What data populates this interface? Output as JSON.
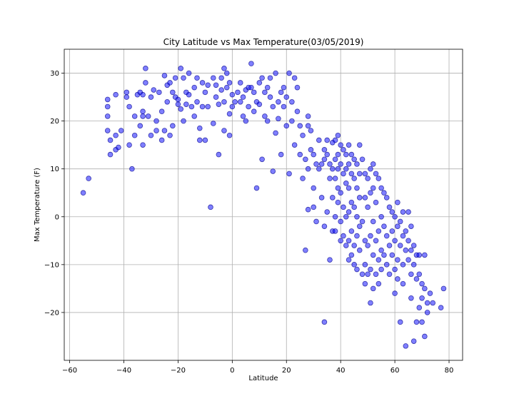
{
  "chart_data": {
    "type": "scatter",
    "title": "City Latitude vs Max Temperature(03/05/2019)",
    "xlabel": "Latitude",
    "ylabel": "Max Temperature (F)",
    "xlim": [
      -62,
      85
    ],
    "ylim": [
      -30,
      35
    ],
    "xticks": [
      -60,
      -40,
      -20,
      0,
      20,
      40,
      60,
      80
    ],
    "yticks": [
      -20,
      -10,
      0,
      10,
      20,
      30
    ],
    "grid": true,
    "marker_color": "#0000ff",
    "marker_edge": "#00008b",
    "marker_alpha": 0.5,
    "points": [
      [
        -55,
        5
      ],
      [
        -53,
        8
      ],
      [
        -46,
        18
      ],
      [
        -46,
        24.5
      ],
      [
        -46,
        23
      ],
      [
        -46,
        21
      ],
      [
        -45,
        16
      ],
      [
        -45,
        13
      ],
      [
        -43,
        25.5
      ],
      [
        -43,
        17
      ],
      [
        -43,
        14
      ],
      [
        -42,
        14.5
      ],
      [
        -41,
        18
      ],
      [
        -39,
        26
      ],
      [
        -39,
        25
      ],
      [
        -38,
        23
      ],
      [
        -38,
        15
      ],
      [
        -37,
        10
      ],
      [
        -36,
        21
      ],
      [
        -36,
        17
      ],
      [
        -35,
        25.5
      ],
      [
        -34,
        26
      ],
      [
        -34,
        19
      ],
      [
        -33,
        25.5
      ],
      [
        -33,
        22
      ],
      [
        -33,
        21
      ],
      [
        -33,
        15
      ],
      [
        -32,
        28
      ],
      [
        -32,
        31
      ],
      [
        -31,
        21
      ],
      [
        -30,
        25
      ],
      [
        -30,
        17
      ],
      [
        -29,
        26.5
      ],
      [
        -28,
        20
      ],
      [
        -28,
        18
      ],
      [
        -27,
        26
      ],
      [
        -26,
        22
      ],
      [
        -26,
        16
      ],
      [
        -25,
        29.5
      ],
      [
        -25,
        18
      ],
      [
        -24,
        27.5
      ],
      [
        -24,
        24
      ],
      [
        -23,
        28
      ],
      [
        -23,
        17
      ],
      [
        -22,
        19
      ],
      [
        -22,
        26
      ],
      [
        -21,
        29
      ],
      [
        -21,
        25
      ],
      [
        -20,
        23.5
      ],
      [
        -20,
        24.5
      ],
      [
        -19,
        31
      ],
      [
        -19,
        22.5
      ],
      [
        -18,
        29
      ],
      [
        -18,
        20
      ],
      [
        -17,
        26
      ],
      [
        -17,
        23.5
      ],
      [
        -16,
        30
      ],
      [
        -16,
        25.5
      ],
      [
        -15,
        23
      ],
      [
        -14,
        27
      ],
      [
        -14,
        21
      ],
      [
        -13,
        29
      ],
      [
        -13,
        24
      ],
      [
        -12,
        16
      ],
      [
        -12,
        18.5
      ],
      [
        -11,
        28
      ],
      [
        -11,
        23
      ],
      [
        -10,
        26
      ],
      [
        -10,
        16
      ],
      [
        -9,
        27.5
      ],
      [
        -9,
        23
      ],
      [
        -8,
        2
      ],
      [
        -7,
        29
      ],
      [
        -7,
        19.5
      ],
      [
        -6,
        25
      ],
      [
        -6,
        27.5
      ],
      [
        -5,
        13
      ],
      [
        -5,
        23.5
      ],
      [
        -4,
        29
      ],
      [
        -4,
        26.5
      ],
      [
        -3,
        31
      ],
      [
        -3,
        24
      ],
      [
        -3,
        18
      ],
      [
        -2,
        27
      ],
      [
        -2,
        30
      ],
      [
        -1,
        28
      ],
      [
        -1,
        21.5
      ],
      [
        -1,
        17
      ],
      [
        0,
        25.5
      ],
      [
        0,
        23
      ],
      [
        1,
        24
      ],
      [
        2,
        26
      ],
      [
        3,
        24
      ],
      [
        3,
        28
      ],
      [
        4,
        25
      ],
      [
        4,
        21
      ],
      [
        5,
        26.5
      ],
      [
        5,
        20
      ],
      [
        6,
        27
      ],
      [
        6,
        23
      ],
      [
        7,
        32
      ],
      [
        7,
        27
      ],
      [
        8,
        26
      ],
      [
        8,
        22
      ],
      [
        9,
        6
      ],
      [
        9,
        24
      ],
      [
        10,
        23.5
      ],
      [
        10,
        28
      ],
      [
        11,
        29
      ],
      [
        11,
        12
      ],
      [
        12,
        26
      ],
      [
        12,
        21
      ],
      [
        13,
        27
      ],
      [
        13,
        20
      ],
      [
        14,
        29
      ],
      [
        14,
        25
      ],
      [
        15,
        23
      ],
      [
        15,
        9.5
      ],
      [
        16,
        30
      ],
      [
        16,
        17.5
      ],
      [
        17,
        24
      ],
      [
        17,
        20.5
      ],
      [
        18,
        26
      ],
      [
        18,
        13
      ],
      [
        19,
        23
      ],
      [
        19,
        27
      ],
      [
        20,
        19
      ],
      [
        20,
        25
      ],
      [
        21,
        30
      ],
      [
        21,
        9
      ],
      [
        22,
        24
      ],
      [
        22,
        20
      ],
      [
        23,
        29
      ],
      [
        23,
        15
      ],
      [
        24,
        27
      ],
      [
        24,
        22
      ],
      [
        25,
        19
      ],
      [
        25,
        13
      ],
      [
        26,
        17
      ],
      [
        26,
        8
      ],
      [
        27,
        12
      ],
      [
        27,
        -7
      ],
      [
        28,
        19
      ],
      [
        28,
        21
      ],
      [
        28,
        10
      ],
      [
        28,
        1.5
      ],
      [
        29,
        18
      ],
      [
        29,
        14
      ],
      [
        30,
        13
      ],
      [
        30,
        6
      ],
      [
        30,
        2
      ],
      [
        31,
        11
      ],
      [
        31,
        -1
      ],
      [
        32,
        16
      ],
      [
        32,
        10
      ],
      [
        33,
        11
      ],
      [
        33,
        4
      ],
      [
        34,
        14
      ],
      [
        34,
        12
      ],
      [
        34,
        -2
      ],
      [
        34,
        -22
      ],
      [
        35,
        16
      ],
      [
        35,
        13
      ],
      [
        35,
        1
      ],
      [
        36,
        11
      ],
      [
        36,
        8
      ],
      [
        36,
        -9
      ],
      [
        37,
        15.5
      ],
      [
        37,
        10
      ],
      [
        37,
        4
      ],
      [
        37,
        -3
      ],
      [
        38,
        16
      ],
      [
        38,
        12
      ],
      [
        38,
        8
      ],
      [
        38,
        0
      ],
      [
        38,
        -3
      ],
      [
        39,
        17
      ],
      [
        39,
        13
      ],
      [
        39,
        10
      ],
      [
        39,
        6
      ],
      [
        39,
        3
      ],
      [
        40,
        15
      ],
      [
        40,
        11
      ],
      [
        40,
        5
      ],
      [
        40,
        -1
      ],
      [
        40,
        -5
      ],
      [
        41,
        14
      ],
      [
        41,
        9
      ],
      [
        41,
        2
      ],
      [
        41,
        -4
      ],
      [
        42,
        13
      ],
      [
        42,
        10
      ],
      [
        42,
        7
      ],
      [
        42,
        0
      ],
      [
        42,
        -6
      ],
      [
        43,
        15
      ],
      [
        43,
        11
      ],
      [
        43,
        6
      ],
      [
        43,
        1
      ],
      [
        43,
        -5
      ],
      [
        43,
        -9
      ],
      [
        44,
        13
      ],
      [
        44,
        9
      ],
      [
        44,
        3
      ],
      [
        44,
        -3
      ],
      [
        44,
        -8
      ],
      [
        45,
        12
      ],
      [
        45,
        8
      ],
      [
        45,
        2
      ],
      [
        45,
        -6
      ],
      [
        45,
        -10
      ],
      [
        46,
        11
      ],
      [
        46,
        6
      ],
      [
        46,
        0
      ],
      [
        46,
        -4
      ],
      [
        46,
        -11
      ],
      [
        47,
        15
      ],
      [
        47,
        9
      ],
      [
        47,
        4
      ],
      [
        47,
        -2
      ],
      [
        47,
        -7
      ],
      [
        48,
        12
      ],
      [
        48,
        -1
      ],
      [
        48,
        -12
      ],
      [
        49,
        9
      ],
      [
        49,
        4
      ],
      [
        49,
        -5
      ],
      [
        49,
        -10
      ],
      [
        49,
        -14
      ],
      [
        50,
        8
      ],
      [
        50,
        2
      ],
      [
        50,
        -6
      ],
      [
        50,
        -12
      ],
      [
        51,
        10
      ],
      [
        51,
        5
      ],
      [
        51,
        -4
      ],
      [
        51,
        -11
      ],
      [
        51,
        -18
      ],
      [
        52,
        11
      ],
      [
        52,
        6
      ],
      [
        52,
        -1
      ],
      [
        52,
        -8
      ],
      [
        52,
        -15
      ],
      [
        53,
        9
      ],
      [
        53,
        3
      ],
      [
        53,
        -5
      ],
      [
        53,
        -12
      ],
      [
        54,
        8
      ],
      [
        54,
        -3
      ],
      [
        54,
        -9
      ],
      [
        54,
        -14
      ],
      [
        55,
        6
      ],
      [
        55,
        0
      ],
      [
        55,
        -7
      ],
      [
        55,
        -11
      ],
      [
        56,
        5
      ],
      [
        56,
        -2
      ],
      [
        56,
        -8
      ],
      [
        57,
        4
      ],
      [
        57,
        -4
      ],
      [
        57,
        -10
      ],
      [
        58,
        2
      ],
      [
        58,
        -6
      ],
      [
        58,
        -12
      ],
      [
        59,
        1
      ],
      [
        59,
        -3
      ],
      [
        59,
        -8
      ],
      [
        60,
        0
      ],
      [
        60,
        -5
      ],
      [
        60,
        -11
      ],
      [
        60,
        -16
      ],
      [
        61,
        3
      ],
      [
        61,
        -2
      ],
      [
        61,
        -9
      ],
      [
        61,
        -13
      ],
      [
        62,
        -1
      ],
      [
        62,
        -6
      ],
      [
        62,
        -22
      ],
      [
        63,
        1
      ],
      [
        63,
        -4
      ],
      [
        63,
        -10
      ],
      [
        63,
        -14
      ],
      [
        64,
        -3
      ],
      [
        64,
        -7
      ],
      [
        64,
        -27
      ],
      [
        65,
        1
      ],
      [
        65,
        -5
      ],
      [
        65,
        -9
      ],
      [
        66,
        -2
      ],
      [
        66,
        -7
      ],
      [
        66,
        -12
      ],
      [
        66,
        -17
      ],
      [
        67,
        -6
      ],
      [
        67,
        -10
      ],
      [
        67,
        -26
      ],
      [
        68,
        -8
      ],
      [
        68,
        -13
      ],
      [
        68,
        -22
      ],
      [
        69,
        -8
      ],
      [
        69,
        -12
      ],
      [
        69,
        -19
      ],
      [
        70,
        -14
      ],
      [
        70,
        -17
      ],
      [
        70,
        -22
      ],
      [
        71,
        -8
      ],
      [
        71,
        -15
      ],
      [
        71,
        -25
      ],
      [
        72,
        -18
      ],
      [
        72,
        -20
      ],
      [
        73,
        -16
      ],
      [
        74,
        -18
      ],
      [
        77,
        -19
      ],
      [
        78,
        -15
      ]
    ]
  }
}
